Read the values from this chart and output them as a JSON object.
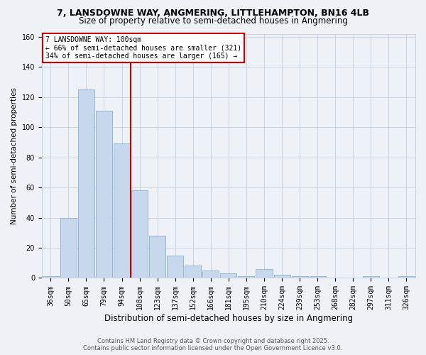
{
  "title_line1": "7, LANSDOWNE WAY, ANGMERING, LITTLEHAMPTON, BN16 4LB",
  "title_line2": "Size of property relative to semi-detached houses in Angmering",
  "categories": [
    "36sqm",
    "50sqm",
    "65sqm",
    "79sqm",
    "94sqm",
    "108sqm",
    "123sqm",
    "137sqm",
    "152sqm",
    "166sqm",
    "181sqm",
    "195sqm",
    "210sqm",
    "224sqm",
    "239sqm",
    "253sqm",
    "268sqm",
    "282sqm",
    "297sqm",
    "311sqm",
    "326sqm"
  ],
  "values": [
    1,
    40,
    125,
    111,
    89,
    58,
    28,
    15,
    8,
    5,
    3,
    1,
    6,
    2,
    1,
    1,
    0,
    0,
    1,
    0,
    1
  ],
  "bar_color": "#c8d8ec",
  "bar_edgecolor": "#8ab0cc",
  "ylabel": "Number of semi-detached properties",
  "xlabel": "Distribution of semi-detached houses by size in Angmering",
  "ylim": [
    0,
    162
  ],
  "yticks": [
    0,
    20,
    40,
    60,
    80,
    100,
    120,
    140,
    160
  ],
  "vline_x_index": 4,
  "vline_color": "#cc0000",
  "annotation_text": "7 LANSDOWNE WAY: 100sqm\n← 66% of semi-detached houses are smaller (321)\n34% of semi-detached houses are larger (165) →",
  "annotation_box_color": "white",
  "annotation_box_edgecolor": "#cc0000",
  "footnote_line1": "Contains HM Land Registry data © Crown copyright and database right 2025.",
  "footnote_line2": "Contains public sector information licensed under the Open Government Licence v3.0.",
  "bg_color": "#eef2f7",
  "grid_color": "#c8d4e0",
  "title_fontsize": 9,
  "subtitle_fontsize": 8.5,
  "ylabel_fontsize": 7.5,
  "xlabel_fontsize": 8.5,
  "tick_fontsize": 7,
  "annot_fontsize": 7,
  "footnote_fontsize": 6
}
